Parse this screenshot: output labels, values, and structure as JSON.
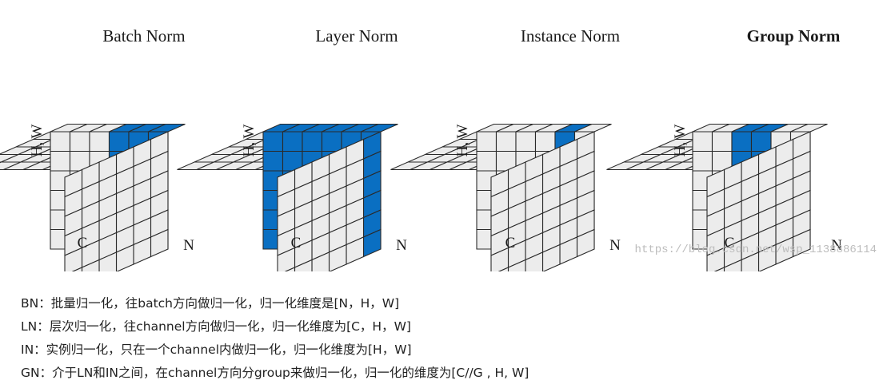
{
  "figure": {
    "panels": [
      {
        "title": "Batch Norm",
        "bold": false,
        "side_label": "H, W",
        "c_label": "C",
        "n_label": "N"
      },
      {
        "title": "Layer Norm",
        "bold": false,
        "side_label": "H, W",
        "c_label": "C",
        "n_label": "N"
      },
      {
        "title": "Instance Norm",
        "bold": false,
        "side_label": "H, W",
        "c_label": "C",
        "n_label": "N"
      },
      {
        "title": "Group Norm",
        "bold": true,
        "side_label": "H, W",
        "c_label": "C",
        "n_label": "N"
      }
    ],
    "highlight_color": "#0a6fc2",
    "cell_color": "#ececec",
    "grid_color": "#2a2a2a",
    "watermark": "https://blog.csdn.net/wsp_1138886114"
  },
  "captions": [
    "BN：批量归一化，往batch方向做归一化，归一化维度是[N，H，W]",
    "LN：层次归一化，往channel方向做归一化，归一化维度为[C，H，W]",
    "IN：实例归一化，只在一个channel内做归一化，归一化维度为[H，W]",
    "GN：介于LN和IN之间，在channel方向分group来做归一化，归一化的维度为[C//G , H, W]"
  ]
}
